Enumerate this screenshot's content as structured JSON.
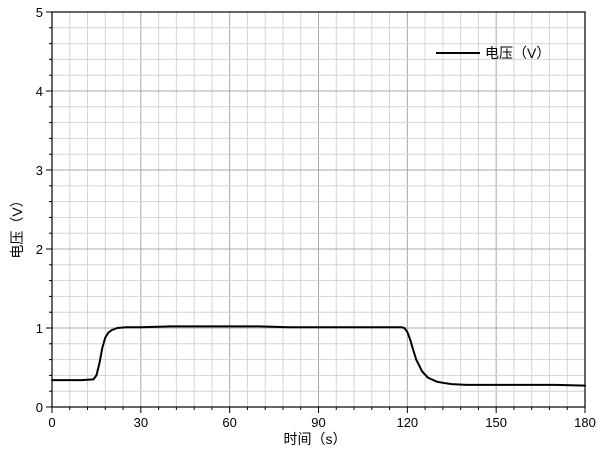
{
  "chart_data": {
    "type": "line",
    "xlabel": "时间（s）",
    "ylabel": "电压（V）",
    "xlim": [
      0,
      180
    ],
    "ylim": [
      0,
      5
    ],
    "x_ticks": [
      0,
      30,
      60,
      90,
      120,
      150,
      180
    ],
    "y_ticks": [
      0,
      1,
      2,
      3,
      4,
      5
    ],
    "x_minor_step": 6,
    "y_minor_step": 0.2,
    "grid": true,
    "legend_position": "top-right",
    "series": [
      {
        "name": "电压（V）",
        "color": "#000000",
        "x": [
          0,
          5,
          10,
          14,
          15,
          16,
          17,
          18,
          19,
          20,
          22,
          25,
          28,
          30,
          40,
          50,
          60,
          70,
          80,
          90,
          100,
          110,
          118,
          119,
          120,
          121,
          122,
          123,
          125,
          127,
          130,
          133,
          135,
          140,
          150,
          160,
          170,
          180
        ],
        "y": [
          0.34,
          0.34,
          0.34,
          0.35,
          0.4,
          0.55,
          0.75,
          0.88,
          0.94,
          0.97,
          1.0,
          1.01,
          1.01,
          1.01,
          1.02,
          1.02,
          1.02,
          1.02,
          1.01,
          1.01,
          1.01,
          1.01,
          1.01,
          1.0,
          0.95,
          0.85,
          0.72,
          0.6,
          0.45,
          0.37,
          0.32,
          0.3,
          0.29,
          0.28,
          0.28,
          0.28,
          0.28,
          0.27
        ]
      }
    ]
  }
}
